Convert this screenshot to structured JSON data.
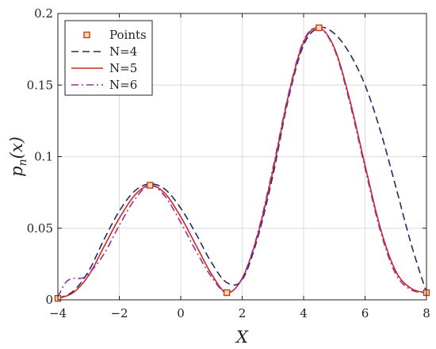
{
  "chart_data": {
    "type": "line",
    "title": "",
    "xlabel": "X",
    "ylabel": "p_n(x)",
    "xlim": [
      -4,
      8
    ],
    "ylim": [
      0,
      0.2
    ],
    "xticks": [
      -4,
      -2,
      0,
      2,
      4,
      6,
      8
    ],
    "yticks": [
      0,
      0.05,
      0.1,
      0.15,
      0.2
    ],
    "xtick_labels": [
      "−4",
      "−2",
      "0",
      "2",
      "4",
      "6",
      "8"
    ],
    "ytick_labels": [
      "0",
      "0.05",
      "0.1",
      "0.15",
      "0.2"
    ],
    "grid": true,
    "legend_position": "top-left",
    "points": {
      "name": "Points",
      "color": "#c0392b",
      "x": [
        -4,
        -1,
        1.5,
        4.5,
        8
      ],
      "y": [
        0.001,
        0.08,
        0.005,
        0.19,
        0.005
      ]
    },
    "series": [
      {
        "name": "N=4",
        "color": "#1f2a6b",
        "style": "dashed",
        "x": [
          -4,
          -3.5,
          -3,
          -2.5,
          -2,
          -1.5,
          -1,
          -0.5,
          0,
          0.5,
          1,
          1.5,
          2,
          2.5,
          3,
          3.5,
          4,
          4.5,
          5,
          5.5,
          6,
          6.5,
          7,
          7.5,
          8
        ],
        "y": [
          0.001,
          0.006,
          0.02,
          0.042,
          0.062,
          0.076,
          0.081,
          0.077,
          0.064,
          0.046,
          0.026,
          0.012,
          0.014,
          0.043,
          0.087,
          0.14,
          0.178,
          0.19,
          0.186,
          0.172,
          0.15,
          0.118,
          0.079,
          0.039,
          0.005
        ]
      },
      {
        "name": "N=5",
        "color": "#cc2a1e",
        "style": "solid",
        "x": [
          -4,
          -3.5,
          -3,
          -2.5,
          -2,
          -1.5,
          -1,
          -0.5,
          0,
          0.5,
          1,
          1.5,
          2,
          2.5,
          3,
          3.5,
          4,
          4.5,
          5,
          5.5,
          6,
          6.5,
          7,
          7.5,
          8
        ],
        "y": [
          0.001,
          0.005,
          0.017,
          0.037,
          0.057,
          0.073,
          0.08,
          0.074,
          0.058,
          0.038,
          0.018,
          0.005,
          0.015,
          0.045,
          0.09,
          0.142,
          0.18,
          0.19,
          0.176,
          0.14,
          0.094,
          0.05,
          0.02,
          0.008,
          0.005
        ]
      },
      {
        "name": "N=6",
        "color": "#9b2a9b",
        "style": "dashdot",
        "x": [
          -4,
          -3.75,
          -3.5,
          -3.25,
          -3,
          -2.5,
          -2,
          -1.5,
          -1,
          -0.5,
          0,
          0.5,
          1,
          1.5,
          2,
          2.5,
          3,
          3.5,
          4,
          4.5,
          5,
          5.5,
          6,
          6.5,
          7,
          7.5,
          8
        ],
        "y": [
          0.002,
          0.012,
          0.015,
          0.015,
          0.018,
          0.032,
          0.052,
          0.07,
          0.08,
          0.072,
          0.054,
          0.034,
          0.016,
          0.005,
          0.015,
          0.046,
          0.092,
          0.143,
          0.181,
          0.19,
          0.175,
          0.138,
          0.092,
          0.048,
          0.018,
          0.007,
          0.005
        ]
      }
    ]
  }
}
